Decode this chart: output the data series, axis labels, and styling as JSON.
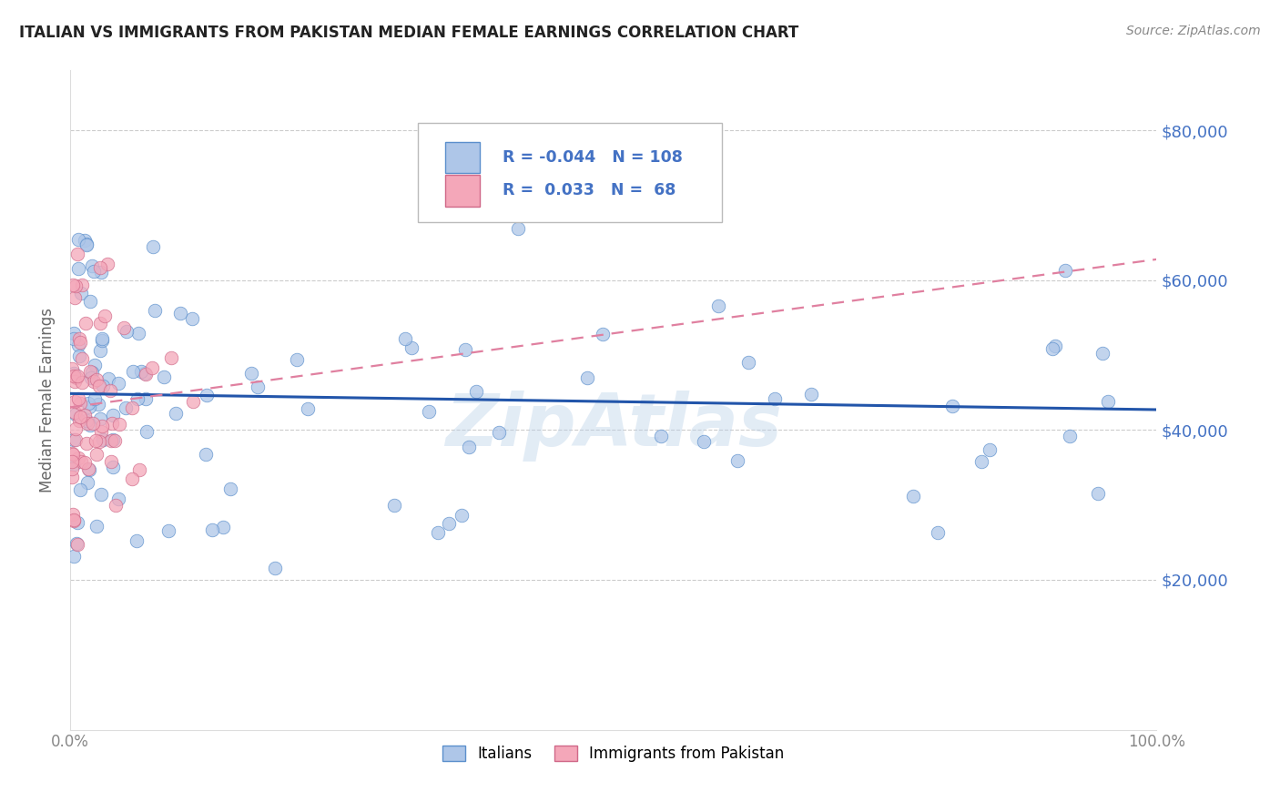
{
  "title": "ITALIAN VS IMMIGRANTS FROM PAKISTAN MEDIAN FEMALE EARNINGS CORRELATION CHART",
  "source": "Source: ZipAtlas.com",
  "ylabel": "Median Female Earnings",
  "watermark": "ZipAtlas",
  "xlim": [
    0,
    100
  ],
  "ylim": [
    0,
    88000
  ],
  "yticks": [
    20000,
    40000,
    60000,
    80000
  ],
  "ytick_labels": [
    "$20,000",
    "$40,000",
    "$60,000",
    "$80,000"
  ],
  "xtick_labels": [
    "0.0%",
    "100.0%"
  ],
  "legend_R_italian": "-0.044",
  "legend_N_italian": "108",
  "legend_R_pakistan": "0.033",
  "legend_N_pakistan": "68",
  "color_italian": "#aec6e8",
  "color_pakistan": "#f4a7b9",
  "color_edge_italian": "#5b8fcc",
  "color_edge_pakistan": "#d06888",
  "color_line_italian": "#2255aa",
  "color_line_pakistan": "#e080a0",
  "background_color": "#ffffff",
  "grid_color": "#cccccc",
  "title_color": "#222222",
  "source_color": "#888888",
  "ylabel_color": "#666666",
  "ytick_color": "#4472c4",
  "xtick_color": "#888888"
}
